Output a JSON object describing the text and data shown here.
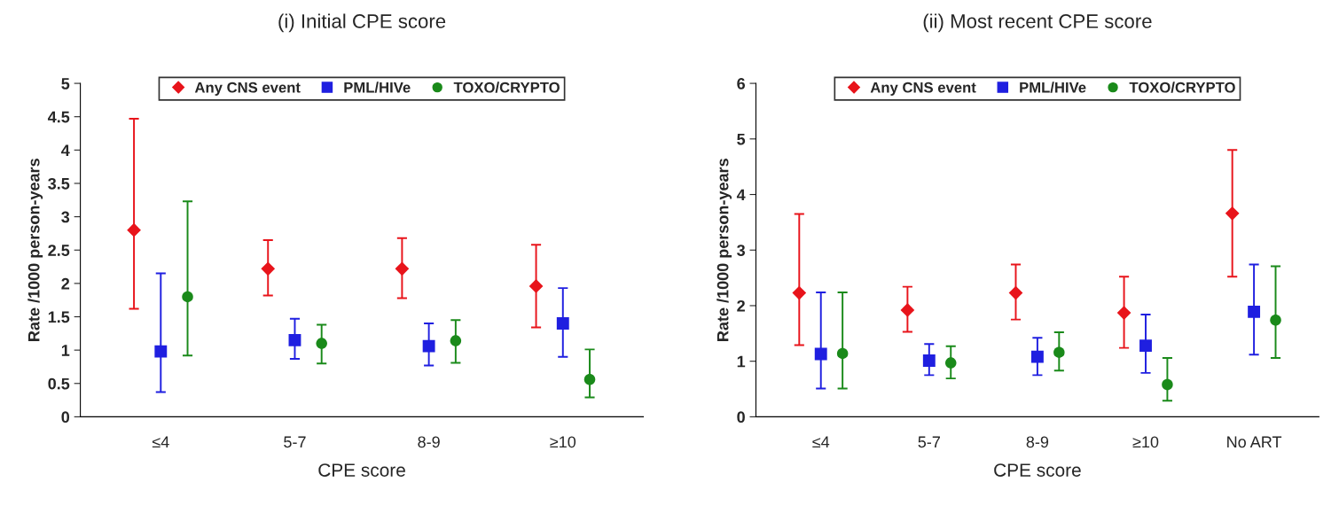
{
  "chart_data": [
    {
      "type": "scatter",
      "title": "(i) Initial CPE score",
      "xlabel": "CPE score",
      "ylabel": "Rate /1000 person-years",
      "categories": [
        "≤4",
        "5-7",
        "8-9",
        "≥10"
      ],
      "series": [
        {
          "name": "Any CNS event",
          "color": "#e8141b",
          "marker": "diamond",
          "values": [
            2.8,
            2.22,
            2.22,
            1.96
          ],
          "errors": [
            [
              1.62,
              4.47
            ],
            [
              1.82,
              2.65
            ],
            [
              1.78,
              2.68
            ],
            [
              1.34,
              2.58
            ]
          ]
        },
        {
          "name": "PML/HIVe",
          "color": "#1f1fe0",
          "marker": "square",
          "values": [
            0.98,
            1.15,
            1.06,
            1.4
          ],
          "errors": [
            [
              0.37,
              2.15
            ],
            [
              0.87,
              1.47
            ],
            [
              0.77,
              1.4
            ],
            [
              0.9,
              1.93
            ]
          ]
        },
        {
          "name": "TOXO/CRYPTO",
          "color": "#1a8a1a",
          "marker": "circle",
          "values": [
            1.8,
            1.1,
            1.14,
            0.56
          ],
          "errors": [
            [
              0.92,
              3.23
            ],
            [
              0.8,
              1.38
            ],
            [
              0.81,
              1.45
            ],
            [
              0.29,
              1.01
            ]
          ]
        }
      ],
      "ylim": [
        0,
        5
      ],
      "yticks": [
        0,
        0.5,
        1,
        1.5,
        2,
        2.5,
        3,
        3.5,
        4,
        4.5,
        5
      ],
      "grid": false,
      "legend": "top"
    },
    {
      "type": "scatter",
      "title": "(ii) Most recent CPE score",
      "xlabel": "CPE score",
      "ylabel": "Rate /1000 person-years",
      "categories": [
        "≤4",
        "5-7",
        "8-9",
        "≥10",
        "No ART"
      ],
      "series": [
        {
          "name": "Any CNS event",
          "color": "#e8141b",
          "marker": "diamond",
          "values": [
            2.23,
            1.92,
            2.23,
            1.87,
            3.66
          ],
          "errors": [
            [
              1.29,
              3.65
            ],
            [
              1.53,
              2.34
            ],
            [
              1.75,
              2.74
            ],
            [
              1.24,
              2.52
            ],
            [
              2.52,
              4.8
            ]
          ]
        },
        {
          "name": "PML/HIVe",
          "color": "#1f1fe0",
          "marker": "square",
          "values": [
            1.13,
            1.01,
            1.08,
            1.28,
            1.89
          ],
          "errors": [
            [
              0.51,
              2.24
            ],
            [
              0.75,
              1.31
            ],
            [
              0.75,
              1.42
            ],
            [
              0.79,
              1.84
            ],
            [
              1.12,
              2.74
            ]
          ]
        },
        {
          "name": "TOXO/CRYPTO",
          "color": "#1a8a1a",
          "marker": "circle",
          "values": [
            1.14,
            0.97,
            1.16,
            0.58,
            1.74
          ],
          "errors": [
            [
              0.51,
              2.24
            ],
            [
              0.69,
              1.27
            ],
            [
              0.83,
              1.52
            ],
            [
              0.29,
              1.06
            ],
            [
              1.06,
              2.71
            ]
          ]
        }
      ],
      "ylim": [
        0,
        6
      ],
      "yticks": [
        0,
        1,
        2,
        3,
        4,
        5,
        6
      ],
      "grid": false,
      "legend": "top"
    }
  ]
}
